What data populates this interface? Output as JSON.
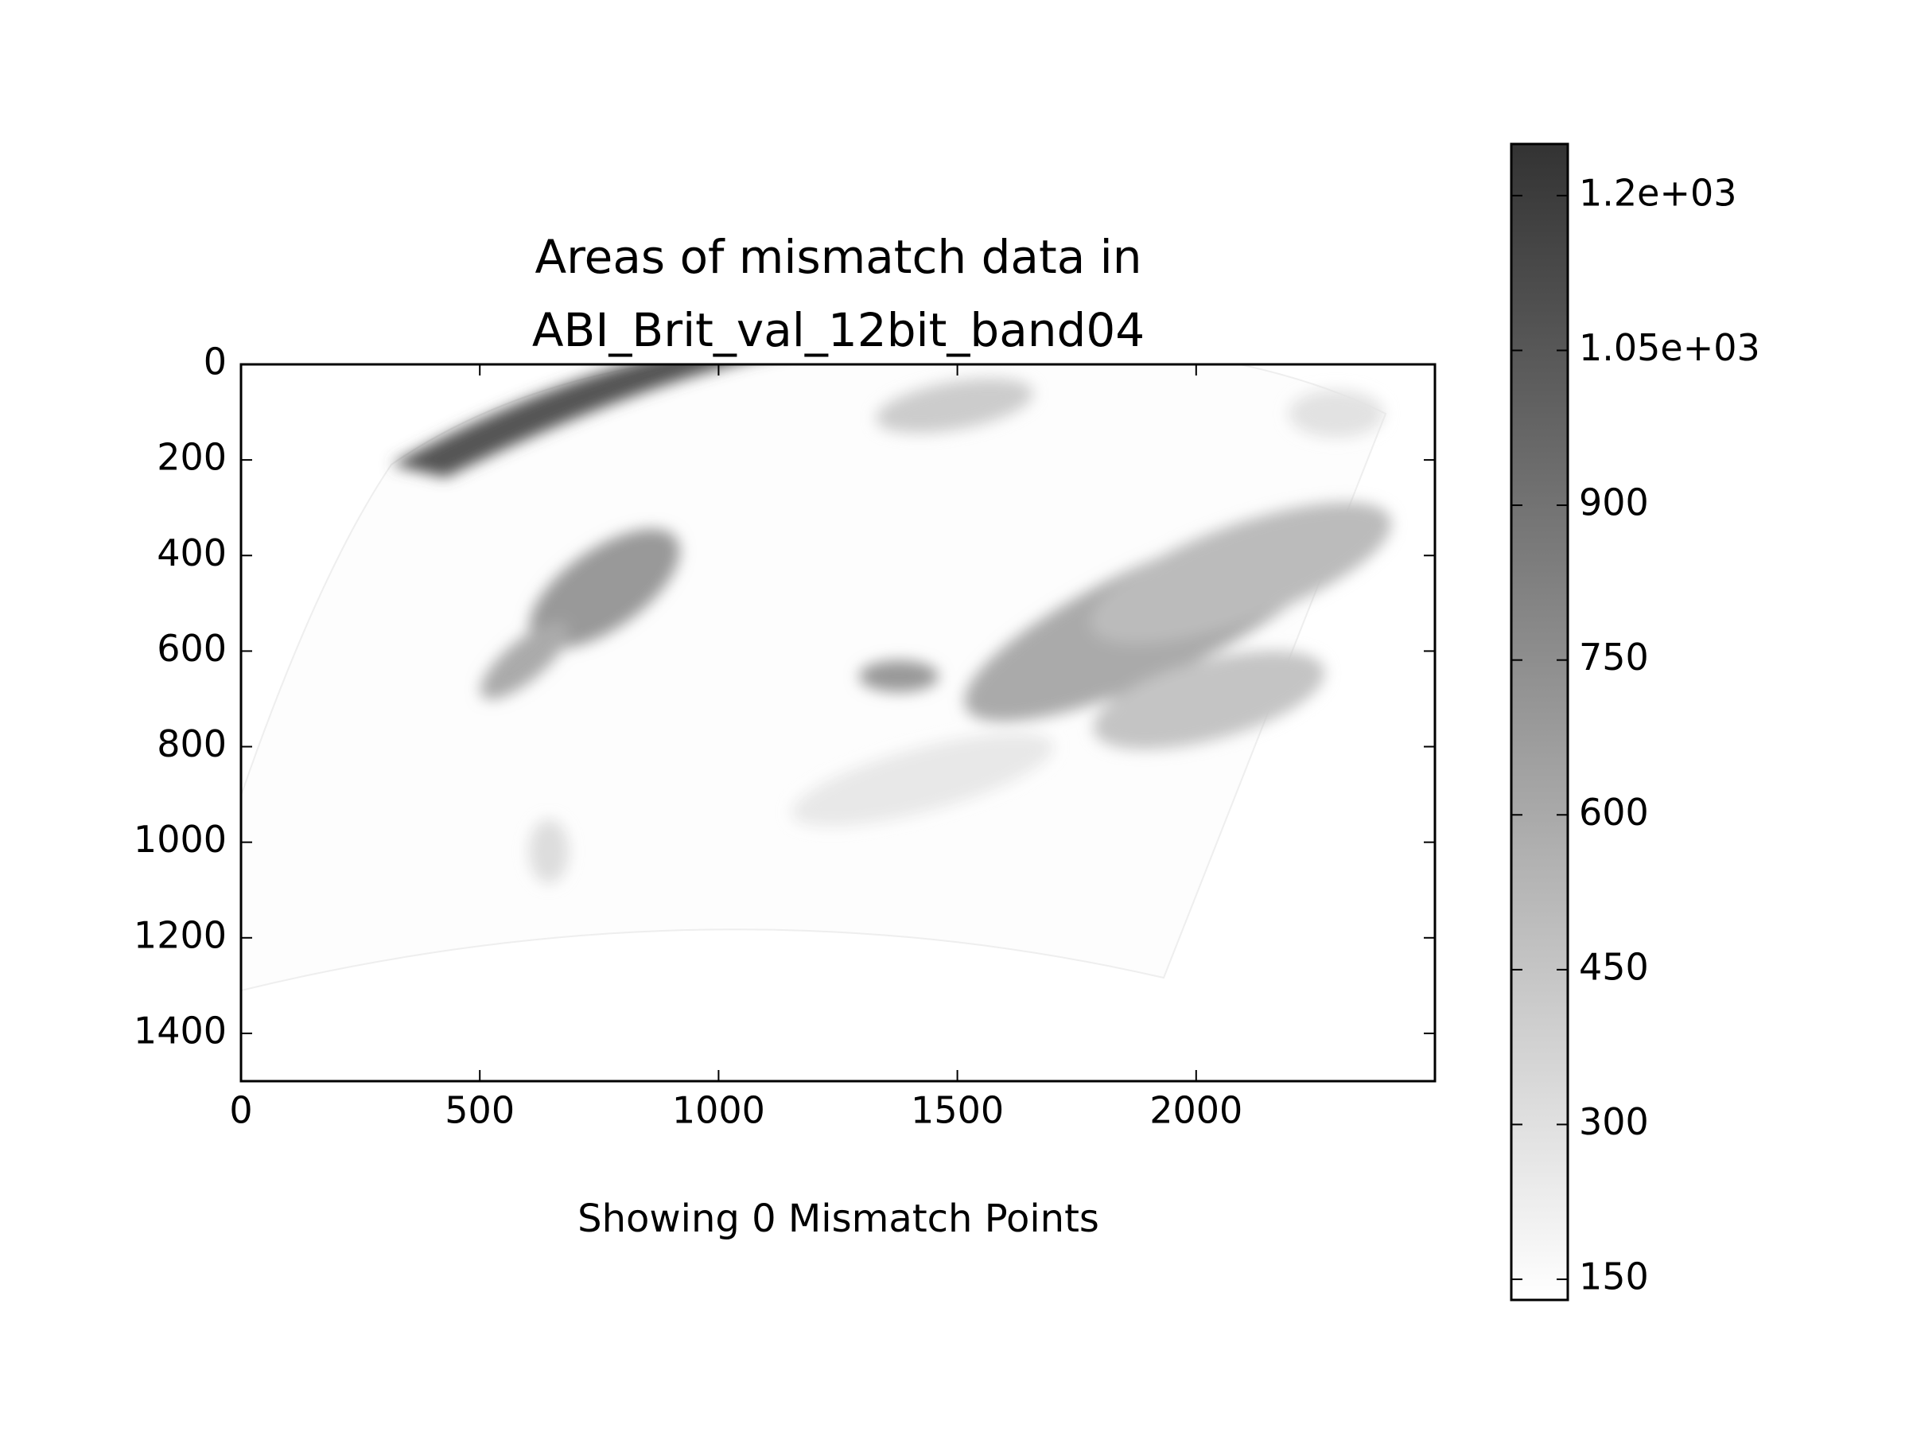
{
  "chart_data": {
    "type": "image",
    "title": [
      "Areas of mismatch data in",
      "ABI_Brit_val_12bit_band04"
    ],
    "xlabel": "Showing 0 Mismatch Points",
    "xlim": [
      0,
      2500
    ],
    "xticks": [
      0,
      500,
      1000,
      1500,
      2000
    ],
    "ylim": [
      1500,
      0
    ],
    "yticks": [
      0,
      200,
      400,
      600,
      800,
      1000,
      1200,
      1400
    ],
    "colorbar": {
      "lim": [
        130,
        1250
      ],
      "ticks": [
        150,
        300,
        450,
        600,
        750,
        900,
        {
          "value": 1050,
          "label": "1.05e+03"
        },
        {
          "value": 1200,
          "label": "1.2e+03"
        }
      ],
      "colors": [
        "#ffffff",
        "#333333"
      ]
    }
  }
}
